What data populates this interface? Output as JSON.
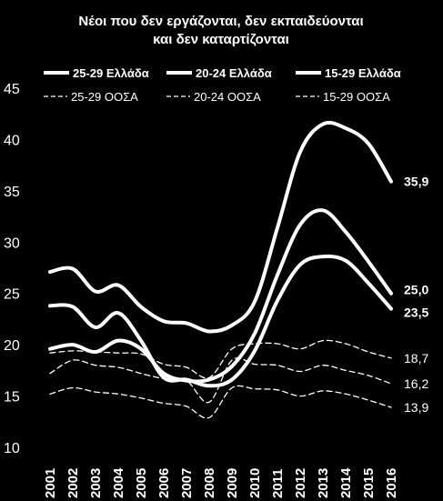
{
  "chart_data": {
    "type": "line",
    "title": [
      "Νέοι που δεν εργάζονται, δεν εκπαιδεύονται",
      "και δεν καταρτίζονται"
    ],
    "xlabel": "",
    "ylabel": "",
    "ylim": [
      10,
      45
    ],
    "yticks": [
      "10",
      "15",
      "20",
      "25",
      "30",
      "35",
      "40",
      "45"
    ],
    "categories": [
      "2001",
      "2002",
      "2003",
      "2004",
      "2005",
      "2006",
      "2007",
      "2008",
      "2009",
      "2010",
      "2011",
      "2012",
      "2013",
      "2014",
      "2015",
      "2016"
    ],
    "grid": false,
    "legend_position": "top",
    "series": [
      {
        "name": "25-29 Ελλάδα",
        "style": "solid",
        "end_label": "35,9",
        "values": [
          27.1,
          27.4,
          25.2,
          25.8,
          23.7,
          22.3,
          22.1,
          21.3,
          21.9,
          24.2,
          31.4,
          38.8,
          41.5,
          41.1,
          39.6,
          35.9
        ]
      },
      {
        "name": "20-24 Ελλάδα",
        "style": "solid",
        "end_label": "25,0",
        "values": [
          19.6,
          20.0,
          19.3,
          20.4,
          19.6,
          17.2,
          16.5,
          16.6,
          17.9,
          21.1,
          26.8,
          31.7,
          33.1,
          31.0,
          28.1,
          25.0
        ]
      },
      {
        "name": "15-29 Ελλάδα",
        "style": "solid",
        "end_label": "23,5",
        "values": [
          23.8,
          23.7,
          21.7,
          23.1,
          20.4,
          16.8,
          16.6,
          16.0,
          16.6,
          19.4,
          24.3,
          27.8,
          28.6,
          28.2,
          26.0,
          23.5
        ]
      },
      {
        "name": "25-29 ΟΟΣΑ",
        "style": "dashed",
        "end_label": "18,7",
        "values": [
          19.2,
          19.4,
          19.3,
          19.2,
          19.1,
          18.1,
          17.8,
          16.8,
          19.6,
          20.1,
          20.1,
          19.6,
          20.4,
          20.1,
          19.3,
          18.7
        ]
      },
      {
        "name": "20-24 ΟΟΣΑ",
        "style": "dashed",
        "end_label": "16,2",
        "values": [
          17.2,
          18.5,
          18.0,
          17.8,
          17.2,
          16.7,
          16.5,
          14.4,
          18.5,
          18.1,
          18.0,
          17.4,
          18.0,
          17.5,
          17.0,
          16.2
        ]
      },
      {
        "name": "15-29 ΟΟΣΑ",
        "style": "dashed",
        "end_label": "13,9",
        "values": [
          15.2,
          15.8,
          15.4,
          15.2,
          14.8,
          14.3,
          14.0,
          12.9,
          15.8,
          15.7,
          15.6,
          15.0,
          15.5,
          15.2,
          14.6,
          13.9
        ]
      }
    ]
  }
}
